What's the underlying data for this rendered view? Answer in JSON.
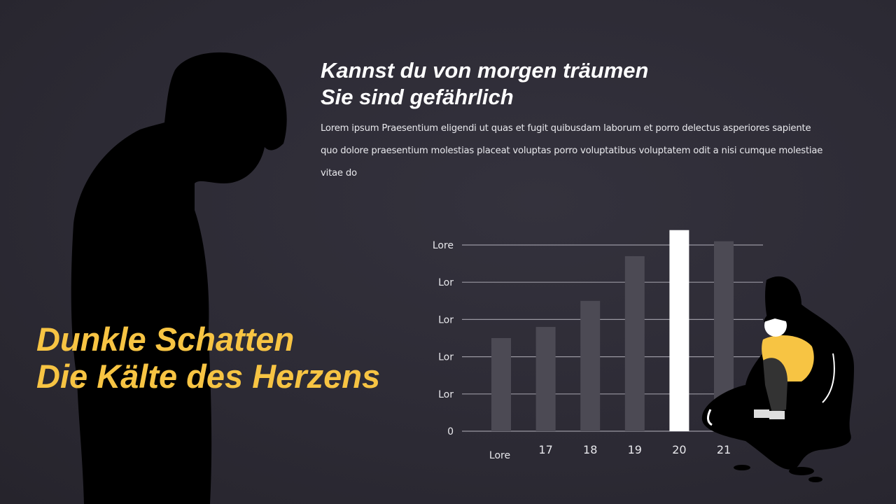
{
  "heading": {
    "line1": "Kannst du von morgen träumen",
    "line2": "Sie sind gefährlich"
  },
  "body": "Lorem ipsum Praesentium eligendi ut quas et fugit quibusdam laborum et porro delectus asperiores sapiente quo dolore praesentium molestias placeat voluptas porro voluptatibus voluptatem odit a nisi cumque molestiae vitae do",
  "main_title": {
    "line1": "Dunkle Schatten",
    "line2": "Die Kälte des Herzens"
  },
  "colors": {
    "accent": "#f7c443",
    "bar": "#4c4a54",
    "highlight_bar": "#ffffff",
    "background": "#2c2a34"
  },
  "chart_data": {
    "type": "bar",
    "categories": [
      "Lore",
      "17",
      "18",
      "19",
      "20",
      "21"
    ],
    "values": [
      2.5,
      2.8,
      3.5,
      4.7,
      5.4,
      5.1
    ],
    "highlight_index": 4,
    "y_ticks": [
      {
        "value": 0,
        "label": "0"
      },
      {
        "value": 1,
        "label": "Lor"
      },
      {
        "value": 2,
        "label": "Lor"
      },
      {
        "value": 3,
        "label": "Lor"
      },
      {
        "value": 4,
        "label": "Lor"
      },
      {
        "value": 5,
        "label": "Lore"
      }
    ],
    "ylim": [
      0,
      5
    ],
    "grid": true,
    "title": "",
    "xlabel": "",
    "ylabel": ""
  }
}
